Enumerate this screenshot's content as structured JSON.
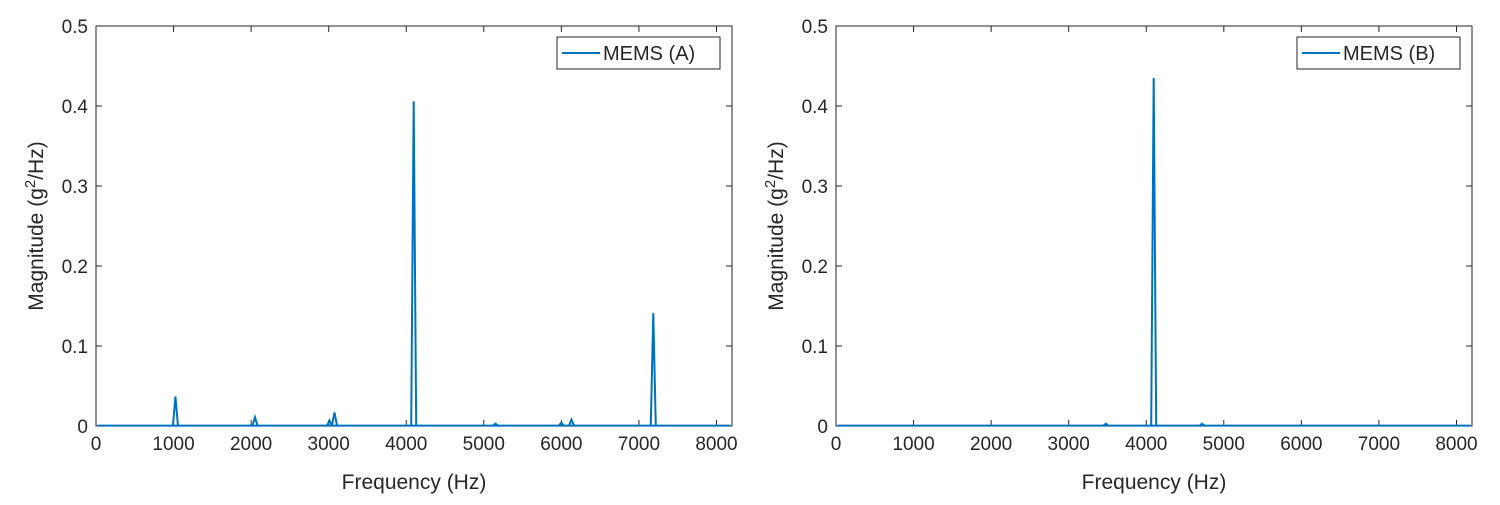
{
  "chart_data": [
    {
      "type": "line",
      "xlabel": "Frequency (Hz)",
      "ylabel_main": "Magnitude (g",
      "ylabel_sup": "2",
      "ylabel_tail": "/Hz)",
      "xlim": [
        0,
        8200
      ],
      "ylim": [
        0,
        0.5
      ],
      "xticks": [
        0,
        1000,
        2000,
        3000,
        4000,
        5000,
        6000,
        7000,
        8000
      ],
      "yticks": [
        0,
        0.1,
        0.2,
        0.3,
        0.4,
        0.5
      ],
      "xtick_labels": [
        "0",
        "1000",
        "2000",
        "3000",
        "4000",
        "5000",
        "6000",
        "7000",
        "8000"
      ],
      "ytick_labels": [
        "0",
        "0.1",
        "0.2",
        "0.3",
        "0.4",
        "0.5"
      ],
      "legend_position": "top-right",
      "series": [
        {
          "name": "MEMS (A)",
          "color": "#0072BD",
          "baseline": 0.0005,
          "peaks": [
            {
              "x": 1024,
              "y": 0.037
            },
            {
              "x": 2050,
              "y": 0.011
            },
            {
              "x": 3010,
              "y": 0.007
            },
            {
              "x": 3075,
              "y": 0.017
            },
            {
              "x": 4096,
              "y": 0.406
            },
            {
              "x": 5150,
              "y": 0.003
            },
            {
              "x": 6000,
              "y": 0.004
            },
            {
              "x": 6130,
              "y": 0.008
            },
            {
              "x": 7185,
              "y": 0.141
            }
          ]
        }
      ]
    },
    {
      "type": "line",
      "xlabel": "Frequency (Hz)",
      "ylabel_main": "Magnitude (g",
      "ylabel_sup": "2",
      "ylabel_tail": "/Hz)",
      "xlim": [
        0,
        8200
      ],
      "ylim": [
        0,
        0.5
      ],
      "xticks": [
        0,
        1000,
        2000,
        3000,
        4000,
        5000,
        6000,
        7000,
        8000
      ],
      "yticks": [
        0,
        0.1,
        0.2,
        0.3,
        0.4,
        0.5
      ],
      "xtick_labels": [
        "0",
        "1000",
        "2000",
        "3000",
        "4000",
        "5000",
        "6000",
        "7000",
        "8000"
      ],
      "ytick_labels": [
        "0",
        "0.1",
        "0.2",
        "0.3",
        "0.4",
        "0.5"
      ],
      "legend_position": "top-right",
      "series": [
        {
          "name": "MEMS (B)",
          "color": "#0072BD",
          "baseline": 0.0005,
          "peaks": [
            {
              "x": 3480,
              "y": 0.003
            },
            {
              "x": 4096,
              "y": 0.435
            },
            {
              "x": 4720,
              "y": 0.003
            }
          ]
        }
      ]
    }
  ]
}
